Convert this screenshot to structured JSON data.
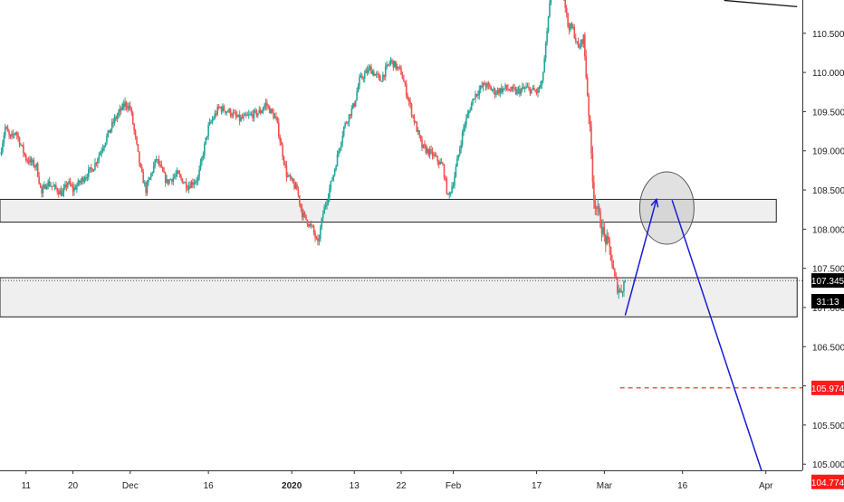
{
  "chart_data": {
    "type": "candlestick",
    "title": "",
    "xlabel": "",
    "ylabel": "",
    "ylim": [
      104.575,
      110.925
    ],
    "xlim": [
      "2019-11-06",
      "2020-04-08"
    ],
    "grid": false,
    "x_ticks": [
      {
        "date": "2019-11-11",
        "label": "11"
      },
      {
        "date": "2019-11-20",
        "label": "20"
      },
      {
        "date": "2019-12-01",
        "label": "Dec"
      },
      {
        "date": "2019-12-16",
        "label": "16"
      },
      {
        "date": "2020-01-01",
        "label": "2020",
        "bold": true
      },
      {
        "date": "2020-01-13",
        "label": "13"
      },
      {
        "date": "2020-01-22",
        "label": "22"
      },
      {
        "date": "2020-02-01",
        "label": "Feb"
      },
      {
        "date": "2020-02-17",
        "label": "17"
      },
      {
        "date": "2020-03-01",
        "label": "Mar"
      },
      {
        "date": "2020-03-16",
        "label": "16"
      },
      {
        "date": "2020-04-01",
        "label": "Apr"
      }
    ],
    "y_ticks": [
      "110.500",
      "110.000",
      "109.500",
      "109.000",
      "108.500",
      "108.000",
      "107.500",
      "107.000",
      "106.500",
      "106.000",
      "105.500",
      "105.000"
    ],
    "price_path": [
      [
        "2019-11-06",
        108.95
      ],
      [
        "2019-11-07",
        109.3
      ],
      [
        "2019-11-08",
        109.15
      ],
      [
        "2019-11-09",
        109.25
      ],
      [
        "2019-11-11",
        108.9
      ],
      [
        "2019-11-13",
        108.8
      ],
      [
        "2019-11-14",
        108.45
      ],
      [
        "2019-11-15",
        108.6
      ],
      [
        "2019-11-18",
        108.45
      ],
      [
        "2019-11-19",
        108.6
      ],
      [
        "2019-11-20",
        108.5
      ],
      [
        "2019-11-22",
        108.65
      ],
      [
        "2019-11-24",
        108.8
      ],
      [
        "2019-11-26",
        109.1
      ],
      [
        "2019-11-28",
        109.4
      ],
      [
        "2019-11-30",
        109.6
      ],
      [
        "2019-12-01",
        109.55
      ],
      [
        "2019-12-03",
        108.75
      ],
      [
        "2019-12-04",
        108.5
      ],
      [
        "2019-12-05",
        108.7
      ],
      [
        "2019-12-06",
        108.9
      ],
      [
        "2019-12-08",
        108.6
      ],
      [
        "2019-12-10",
        108.7
      ],
      [
        "2019-12-12",
        108.55
      ],
      [
        "2019-12-14",
        108.65
      ],
      [
        "2019-12-16",
        109.3
      ],
      [
        "2019-12-18",
        109.55
      ],
      [
        "2019-12-20",
        109.5
      ],
      [
        "2019-12-22",
        109.4
      ],
      [
        "2019-12-24",
        109.45
      ],
      [
        "2019-12-26",
        109.5
      ],
      [
        "2019-12-27",
        109.6
      ],
      [
        "2019-12-29",
        109.4
      ],
      [
        "2019-12-31",
        108.7
      ],
      [
        "2020-01-02",
        108.5
      ],
      [
        "2020-01-03",
        108.2
      ],
      [
        "2020-01-05",
        108.0
      ],
      [
        "2020-01-06",
        107.8
      ],
      [
        "2020-01-07",
        108.2
      ],
      [
        "2020-01-08",
        108.45
      ],
      [
        "2020-01-09",
        108.7
      ],
      [
        "2020-01-11",
        109.3
      ],
      [
        "2020-01-13",
        109.6
      ],
      [
        "2020-01-14",
        109.9
      ],
      [
        "2020-01-16",
        110.05
      ],
      [
        "2020-01-18",
        109.9
      ],
      [
        "2020-01-20",
        110.15
      ],
      [
        "2020-01-22",
        110.0
      ],
      [
        "2020-01-24",
        109.5
      ],
      [
        "2020-01-26",
        109.05
      ],
      [
        "2020-01-28",
        108.95
      ],
      [
        "2020-01-30",
        108.8
      ],
      [
        "2020-01-31",
        108.4
      ],
      [
        "2020-02-01",
        108.6
      ],
      [
        "2020-02-03",
        109.3
      ],
      [
        "2020-02-05",
        109.7
      ],
      [
        "2020-02-07",
        109.85
      ],
      [
        "2020-02-09",
        109.75
      ],
      [
        "2020-02-11",
        109.8
      ],
      [
        "2020-02-13",
        109.75
      ],
      [
        "2020-02-15",
        109.8
      ],
      [
        "2020-02-17",
        109.75
      ],
      [
        "2020-02-18",
        109.85
      ],
      [
        "2020-02-19",
        110.5
      ],
      [
        "2020-02-20",
        111.2
      ],
      [
        "2020-02-21",
        111.5
      ],
      [
        "2020-02-22",
        111.1
      ],
      [
        "2020-02-23",
        110.6
      ],
      [
        "2020-02-24",
        110.55
      ],
      [
        "2020-02-25",
        110.3
      ],
      [
        "2020-02-26",
        110.45
      ],
      [
        "2020-02-27",
        109.5
      ],
      [
        "2020-02-28",
        108.4
      ],
      [
        "2020-03-01",
        107.9
      ],
      [
        "2020-03-02",
        107.75
      ],
      [
        "2020-03-03",
        107.35
      ],
      [
        "2020-03-04",
        107.2
      ],
      [
        "2020-03-05",
        107.35
      ]
    ],
    "colors": {
      "up": "#26a69a",
      "down": "#ef5350",
      "zone_fill": "#efefef",
      "zone_border": "#222222",
      "projection": "#1a1ad4",
      "target": "#ff1a1a",
      "price_tag": "#000000"
    },
    "zones": [
      {
        "y_top": 108.38,
        "y_bottom": 108.09,
        "x_start": "2019-11-06",
        "x_end": "2020-04-03"
      },
      {
        "y_top": 107.38,
        "y_bottom": 106.88,
        "x_start": "2019-11-06",
        "x_end": "2020-04-07"
      }
    ],
    "current_price_line": 107.345,
    "top_trend_line": [
      [
        "2020-03-24",
        110.92
      ],
      [
        "2020-04-07",
        110.84
      ]
    ],
    "projection_path": [
      [
        "2020-03-05",
        106.9
      ],
      [
        "2020-03-11",
        108.38
      ],
      [
        "2020-03-14",
        108.37
      ],
      [
        "2020-04-01",
        104.75
      ]
    ],
    "circle": {
      "date": "2020-03-13",
      "price": 108.27
    },
    "target_lines": [
      {
        "value": 105.974,
        "label": "105.974",
        "x_start": "2020-03-04"
      },
      {
        "value": 104.774,
        "label": "104.774",
        "x_start": "2020-02-28"
      }
    ],
    "price_labels": [
      {
        "label": "107.345",
        "value": 107.345
      },
      {
        "label": "31:13",
        "value": 107.08
      }
    ]
  }
}
